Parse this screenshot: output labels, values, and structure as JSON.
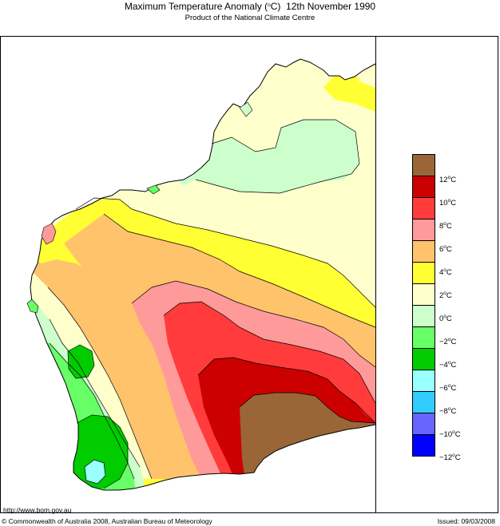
{
  "header": {
    "title": "Maximum Temperature Anomaly (°C)  12th November 1990",
    "subtitle": "Product of the National Climate Centre"
  },
  "legend": {
    "unit": "C",
    "swatches": [
      {
        "color": "#9a6638"
      },
      {
        "color": "#cc0000"
      },
      {
        "color": "#ff3b3b"
      },
      {
        "color": "#ff9a9a"
      },
      {
        "color": "#ffc36b"
      },
      {
        "color": "#ffff33"
      },
      {
        "color": "#ffffcc"
      },
      {
        "color": "#ccffcc"
      },
      {
        "color": "#66ff66"
      },
      {
        "color": "#00cc00"
      },
      {
        "color": "#99ffff"
      },
      {
        "color": "#33ccff"
      },
      {
        "color": "#6666ff"
      },
      {
        "color": "#0000ff"
      }
    ],
    "labels": [
      "12",
      "10",
      "8",
      "6",
      "4",
      "2",
      "0",
      "−2",
      "−4",
      "−6",
      "−8",
      "−10",
      "−12"
    ]
  },
  "footer": {
    "url": "http://www.bom.gov.au",
    "copyright": "© Commonwealth of Australia 2008, Australian Bureau of Meteorology",
    "issued": "Issued: 09/03/2008"
  }
}
